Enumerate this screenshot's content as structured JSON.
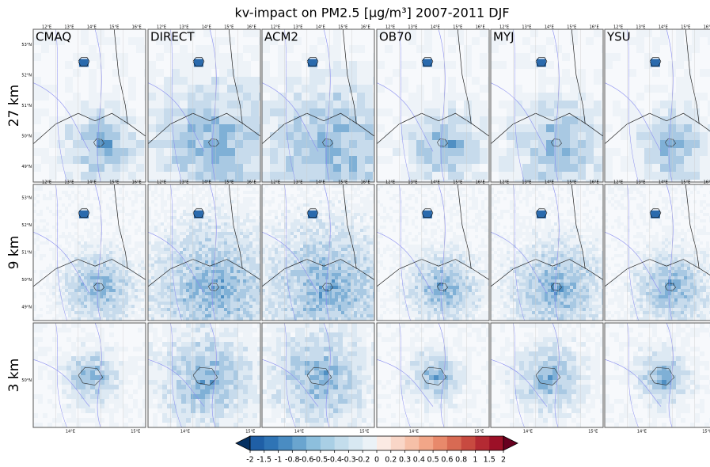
{
  "header": {
    "title": "kv-impact on PM2.5 [μg/m³] 2007-2011 DJF"
  },
  "rows": [
    "27 km",
    "9 km",
    "3 km"
  ],
  "columns": [
    "CMAQ",
    "DIRECT",
    "ACM2",
    "OB70",
    "MYJ",
    "YSU"
  ],
  "coarse_axes": {
    "lon_ticks": [
      "12°E",
      "13°E",
      "14°E",
      "15°E",
      "16°E"
    ],
    "lat_ticks": [
      "53°N",
      "52°N",
      "51°N",
      "50°N",
      "49°N"
    ]
  },
  "fine_axes": {
    "lon_ticks": [
      "14°E",
      "15°E"
    ],
    "lat_ticks": [
      "50°N"
    ]
  },
  "colorbar": {
    "ticks": [
      -2,
      -1.5,
      -1,
      -0.8,
      -0.6,
      -0.5,
      -0.4,
      -0.3,
      -0.2,
      0,
      0.2,
      0.3,
      0.4,
      0.5,
      0.6,
      0.8,
      1,
      1.5,
      2
    ],
    "colors": [
      "#053061",
      "#1f5fa6",
      "#2f74b5",
      "#4a8cc2",
      "#6aa5cf",
      "#8dbfdd",
      "#a9cfe5",
      "#c3ddec",
      "#d8e8f2",
      "#ebf2f7",
      "#fbeae3",
      "#f9d6c7",
      "#f6c0a8",
      "#f2a688",
      "#e8896b",
      "#d86a53",
      "#c84a40",
      "#b42a33",
      "#9c1027",
      "#67001f"
    ]
  }
}
